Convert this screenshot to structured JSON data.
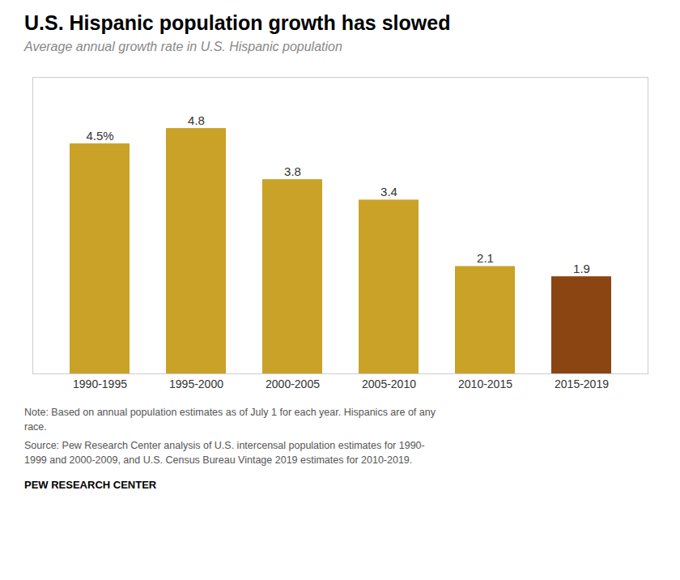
{
  "chart_data": {
    "type": "bar",
    "title": "U.S. Hispanic population growth has slowed",
    "subtitle": "Average annual growth rate in U.S. Hispanic population",
    "categories": [
      "1990-1995",
      "1995-2000",
      "2000-2005",
      "2005-2010",
      "2010-2015",
      "2015-2019"
    ],
    "values": [
      4.5,
      4.8,
      3.8,
      3.4,
      2.1,
      1.9
    ],
    "value_labels": [
      "4.5%",
      "4.8",
      "3.8",
      "3.4",
      "2.1",
      "1.9"
    ],
    "data_labels": true,
    "colors": [
      "#C9A227",
      "#C9A227",
      "#C9A227",
      "#C9A227",
      "#C9A227",
      "#8B4513"
    ],
    "ylim": [
      0,
      5.8
    ],
    "tick_labels": "x",
    "grid": false,
    "note": "Note: Based on annual population estimates as of July 1 for each year. Hispanics are of any\nrace.",
    "source": "Source: Pew Research Center analysis of U.S. intercensal population estimates for 1990-\n1999 and 2000-2009, and U.S. Census Bureau Vintage 2019 estimates for 2010-2019.",
    "credit": "PEW RESEARCH CENTER"
  }
}
